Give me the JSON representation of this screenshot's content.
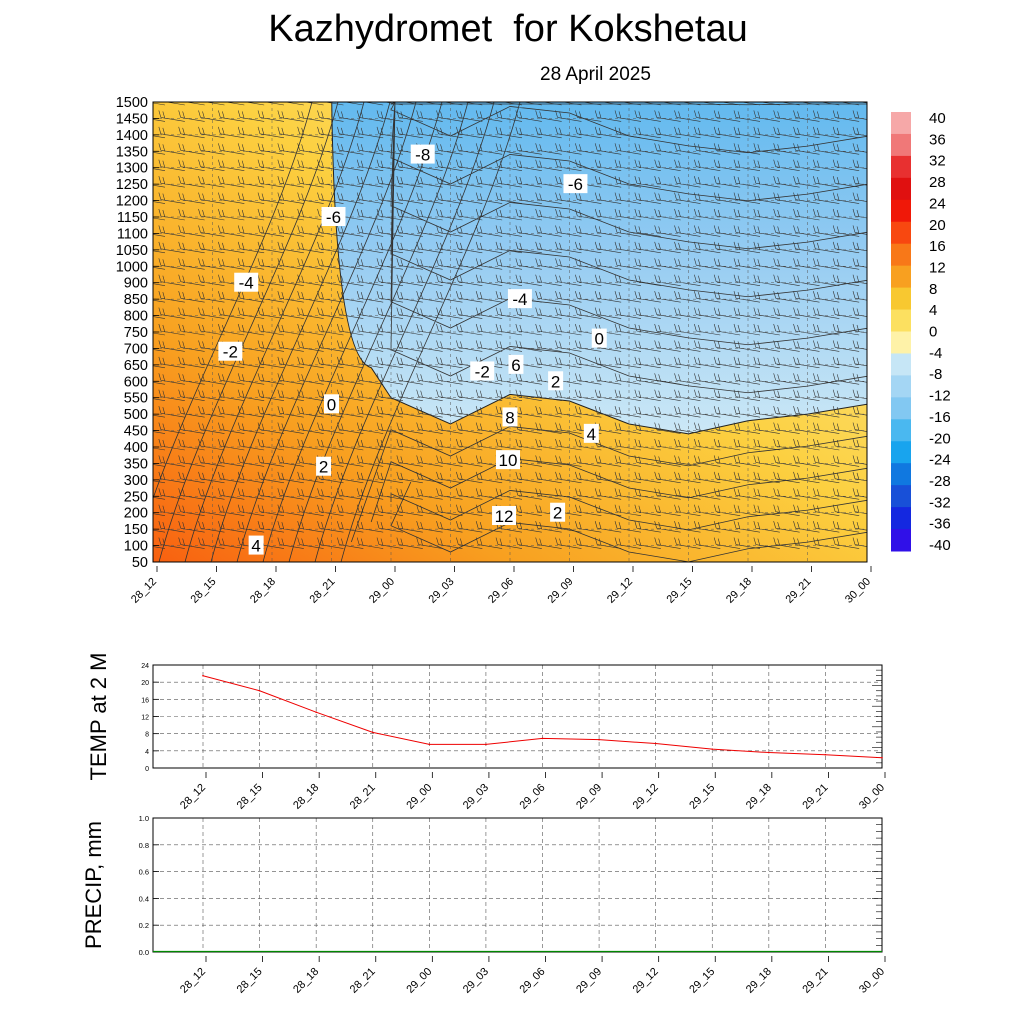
{
  "header": {
    "title": "Kazhydromet  for Kokshetau",
    "subtitle": "28 April 2025"
  },
  "chart_data": [
    {
      "type": "heatmap",
      "time_labels": [
        "28_12",
        "28_15",
        "28_18",
        "28_21",
        "29_00",
        "29_03",
        "29_06",
        "29_09",
        "29_12",
        "29_15",
        "29_18",
        "29_21",
        "30_00"
      ],
      "y_tick_labels": [
        "50",
        "100",
        "150",
        "200",
        "250",
        "300",
        "350",
        "400",
        "450",
        "500",
        "550",
        "600",
        "650",
        "700",
        "750",
        "800",
        "850",
        "900",
        "1000",
        "1050",
        "1100",
        "1150",
        "1200",
        "1250",
        "1300",
        "1350",
        "1400",
        "1450",
        "1500"
      ],
      "contour_labels": [
        {
          "text": "-8",
          "time": 13.6,
          "level": 1340
        },
        {
          "text": "-6",
          "time": 21.3,
          "level": 1250
        },
        {
          "text": "-6",
          "time": 9.1,
          "level": 1150
        },
        {
          "text": "-4",
          "time": 4.7,
          "level": 900
        },
        {
          "text": "-4",
          "time": 18.5,
          "level": 850
        },
        {
          "text": "0",
          "time": 22.5,
          "level": 730
        },
        {
          "text": "-2",
          "time": 3.9,
          "level": 690
        },
        {
          "text": "-2",
          "time": 16.6,
          "level": 630
        },
        {
          "text": "6",
          "time": 18.3,
          "level": 650
        },
        {
          "text": "2",
          "time": 20.3,
          "level": 600
        },
        {
          "text": "0",
          "time": 9.0,
          "level": 530
        },
        {
          "text": "8",
          "time": 18.0,
          "level": 490
        },
        {
          "text": "4",
          "time": 22.1,
          "level": 440
        },
        {
          "text": "10",
          "time": 17.9,
          "level": 360
        },
        {
          "text": "2",
          "time": 8.6,
          "level": 340
        },
        {
          "text": "12",
          "time": 17.7,
          "level": 190
        },
        {
          "text": "2",
          "time": 20.4,
          "level": 200
        },
        {
          "text": "4",
          "time": 5.2,
          "level": 100
        }
      ],
      "zero_contour": {
        "times": [
          0,
          3,
          6,
          9,
          12,
          15,
          18,
          21,
          24,
          27,
          30,
          33,
          36
        ],
        "levels": [
          null,
          null,
          null,
          1450,
          550,
          470,
          560,
          540,
          470,
          440,
          480,
          500,
          530
        ]
      },
      "colorbar": {
        "labels": [
          "40",
          "36",
          "32",
          "28",
          "24",
          "20",
          "16",
          "12",
          "8",
          "4",
          "0",
          "-4",
          "-8",
          "-12",
          "-16",
          "-20",
          "-24",
          "-28",
          "-32",
          "-36",
          "-40"
        ],
        "colors": [
          "#f6a8a8",
          "#f07878",
          "#e83030",
          "#e01010",
          "#f01808",
          "#f84810",
          "#f87818",
          "#f8a020",
          "#f8c830",
          "#fce060",
          "#fef2a8",
          "#c6e6f6",
          "#a4d6f4",
          "#82c8f2",
          "#4ab8f0",
          "#18a4ee",
          "#1078e0",
          "#1850d8",
          "#1428e0",
          "#3010e8",
          "#7030e8"
        ]
      },
      "colors": {
        "warm": "#f8b020",
        "hot": "#f86818",
        "cool": "#a8d8f4",
        "cold": "#60b8ee"
      }
    },
    {
      "type": "line",
      "ylabel": "TEMP at 2 M",
      "categories": [
        "28_12",
        "28_15",
        "28_18",
        "28_21",
        "29_00",
        "29_03",
        "29_06",
        "29_09",
        "29_12",
        "29_15",
        "29_18",
        "29_21",
        "30_00"
      ],
      "values": [
        21.5,
        18.0,
        13.0,
        8.3,
        5.5,
        5.5,
        6.9,
        6.6,
        5.7,
        4.4,
        3.6,
        3.1,
        2.4
      ],
      "ylim": [
        0,
        24
      ],
      "y_ticks": [
        "0",
        "4",
        "8",
        "12",
        "16",
        "20",
        "24"
      ],
      "line_color": "#ee0000"
    },
    {
      "type": "bar",
      "ylabel": "PRECIP, mm",
      "categories": [
        "28_12",
        "28_15",
        "28_18",
        "28_21",
        "29_00",
        "29_03",
        "29_06",
        "29_09",
        "29_12",
        "29_15",
        "29_18",
        "29_21",
        "30_00"
      ],
      "values": [
        0,
        0,
        0,
        0,
        0,
        0,
        0,
        0,
        0,
        0,
        0,
        0,
        0
      ],
      "ylim": [
        0,
        1.0
      ],
      "y_ticks": [
        "0.0",
        "0.2",
        "0.4",
        "0.6",
        "0.8",
        "1.0"
      ],
      "bar_color": "#008800"
    }
  ]
}
